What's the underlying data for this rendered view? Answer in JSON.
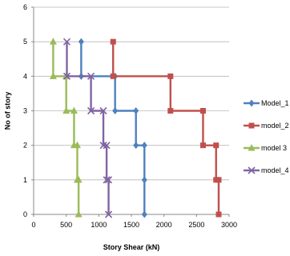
{
  "chart_data": {
    "type": "line",
    "xlabel": "Story Shear (kN)",
    "ylabel": "No of story",
    "xlim": [
      0,
      3000
    ],
    "ylim": [
      0,
      6
    ],
    "x_ticks": [
      "0",
      "500",
      "1000",
      "1500",
      "2000",
      "2500",
      "3000"
    ],
    "y_ticks": [
      "0",
      "1",
      "2",
      "3",
      "4",
      "5",
      "6"
    ],
    "grid": "horizontal",
    "legend_position": "right",
    "series": [
      {
        "name": "Model_1",
        "color": "#4F81BD",
        "marker": "diamond",
        "points": [
          [
            1700,
            0
          ],
          [
            1700,
            1
          ],
          [
            1700,
            2
          ],
          [
            1570,
            2
          ],
          [
            1570,
            3
          ],
          [
            1250,
            3
          ],
          [
            1250,
            4
          ],
          [
            730,
            4
          ],
          [
            730,
            5
          ]
        ]
      },
      {
        "name": "model_2",
        "color": "#C0504D",
        "marker": "square",
        "points": [
          [
            2840,
            0
          ],
          [
            2840,
            1
          ],
          [
            2800,
            1
          ],
          [
            2800,
            2
          ],
          [
            2600,
            2
          ],
          [
            2600,
            3
          ],
          [
            2100,
            3
          ],
          [
            2100,
            4
          ],
          [
            1220,
            4
          ],
          [
            1220,
            5
          ]
        ]
      },
      {
        "name": "model 3",
        "color": "#9BBB59",
        "marker": "triangle",
        "points": [
          [
            690,
            0
          ],
          [
            690,
            1
          ],
          [
            670,
            1
          ],
          [
            670,
            2
          ],
          [
            620,
            2
          ],
          [
            620,
            3
          ],
          [
            500,
            3
          ],
          [
            500,
            4
          ],
          [
            300,
            4
          ],
          [
            300,
            5
          ]
        ]
      },
      {
        "name": "model_4",
        "color": "#8064A2",
        "marker": "x",
        "points": [
          [
            1150,
            0
          ],
          [
            1150,
            1
          ],
          [
            1120,
            1
          ],
          [
            1120,
            2
          ],
          [
            1070,
            2
          ],
          [
            1070,
            3
          ],
          [
            880,
            3
          ],
          [
            880,
            4
          ],
          [
            510,
            4
          ],
          [
            510,
            5
          ]
        ]
      }
    ]
  }
}
